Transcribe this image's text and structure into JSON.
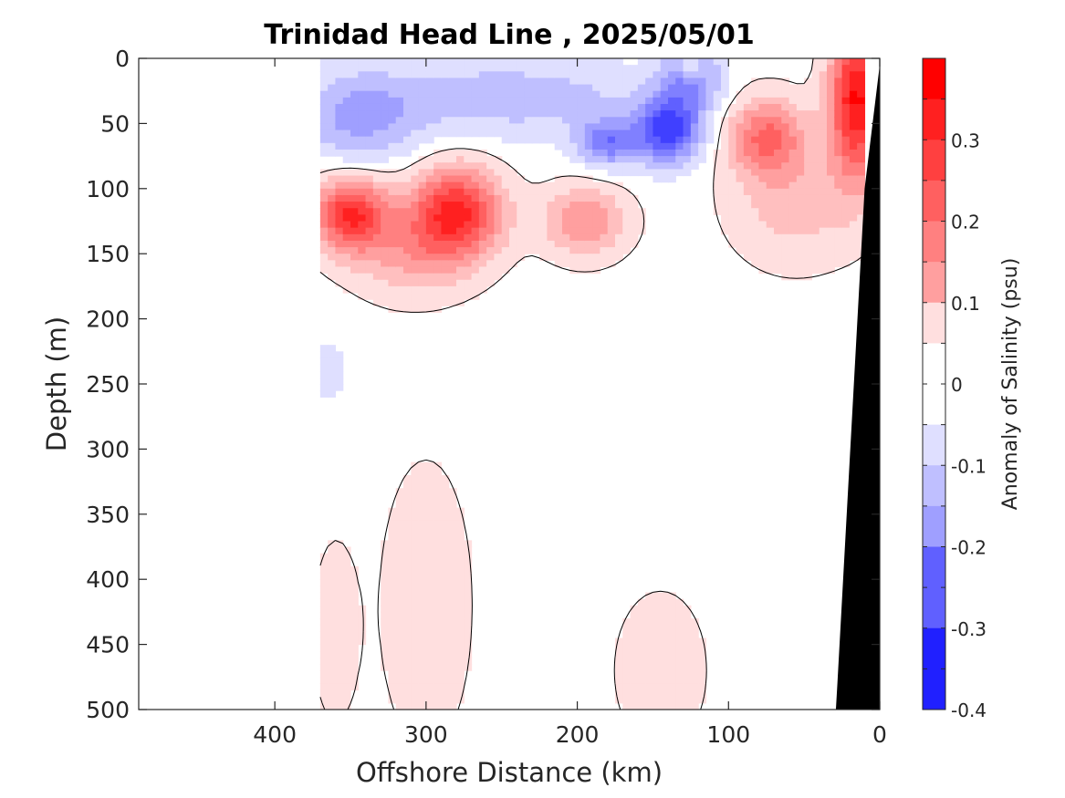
{
  "chart_data": {
    "type": "heatmap",
    "title": "Trinidad Head Line , 2025/05/01",
    "xlabel": "Offshore Distance (km)",
    "ylabel": "Depth (m)",
    "colorbar_label": "Anomaly of Salinity (psu)",
    "xlim": [
      490,
      0
    ],
    "ylim": [
      500,
      0
    ],
    "x_reversed": true,
    "y_reversed": true,
    "x_ticks": [
      400,
      300,
      200,
      100,
      0
    ],
    "x_tick_labels": [
      "400",
      "300",
      "200",
      "100",
      "0"
    ],
    "y_ticks": [
      0,
      50,
      100,
      150,
      200,
      250,
      300,
      350,
      400,
      450,
      500
    ],
    "y_tick_labels": [
      "0",
      "50",
      "100",
      "150",
      "200",
      "250",
      "300",
      "350",
      "400",
      "450",
      "500"
    ],
    "colorbar_range": [
      -0.4,
      0.4
    ],
    "colorbar_step": 0.05,
    "colorbar_ticks": [
      0.3,
      0.2,
      0.1,
      0,
      -0.1,
      -0.2,
      -0.3,
      -0.4
    ],
    "colorbar_tick_labels": [
      "0.3",
      "0.2",
      "0.1",
      "0",
      "-0.1",
      "-0.2",
      "-0.3",
      "-0.4"
    ],
    "colormap": "blue-white-red",
    "colors": {
      "positive_max": "#ff0000",
      "negative_max": "#0000ff",
      "zero": "#ffffff",
      "bathymetry": "#000000",
      "zero_contour": "#000000"
    },
    "data_extent_km": [
      370,
      10
    ],
    "zero_contour": true,
    "features": [
      {
        "name": "negative-surface-layer",
        "distance_km": [
          370,
          100
        ],
        "depth_m": [
          0,
          100
        ],
        "anomaly_min": -0.3
      },
      {
        "name": "positive-subsurface-layer",
        "distance_km": [
          370,
          180
        ],
        "depth_m": [
          80,
          220
        ],
        "anomaly_max": 0.3
      },
      {
        "name": "nearshore-high",
        "distance_km": [
          90,
          10
        ],
        "depth_m": [
          0,
          160
        ],
        "anomaly_max": 0.35
      },
      {
        "name": "weak-positive-deep-patches",
        "distance_km": [
          370,
          110
        ],
        "depth_m": [
          300,
          500
        ],
        "anomaly_max": 0.1
      }
    ]
  }
}
